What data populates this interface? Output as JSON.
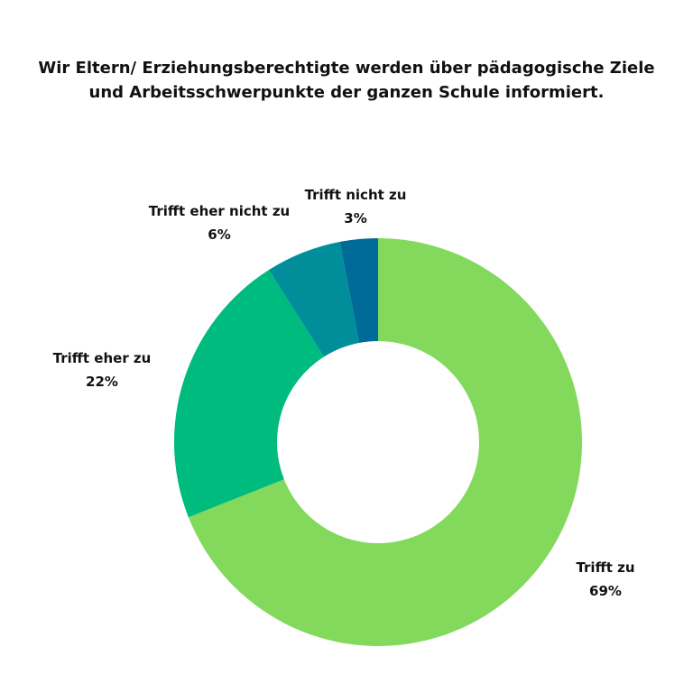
{
  "title_lines": [
    "Wir Eltern/ Erziehungsberechtigte werden über pädagogische Ziele",
    "und Arbeitsschwerpunkte der ganzen Schule informiert."
  ],
  "chart_data": {
    "type": "pie",
    "variant": "donut",
    "title": "Wir Eltern/ Erziehungsberechtigte werden über pädagogische Ziele und Arbeitsschwerpunkte der ganzen Schule informiert.",
    "categories": [
      "Trifft zu",
      "Trifft eher zu",
      "Trifft eher nicht zu",
      "Trifft nicht zu"
    ],
    "values": [
      69,
      22,
      6,
      3
    ],
    "value_labels": [
      "69%",
      "22%",
      "6%",
      "3%"
    ],
    "colors": [
      "#82d95c",
      "#00bb7e",
      "#008e9b",
      "#006a98"
    ],
    "direction": "clockwise from top"
  }
}
